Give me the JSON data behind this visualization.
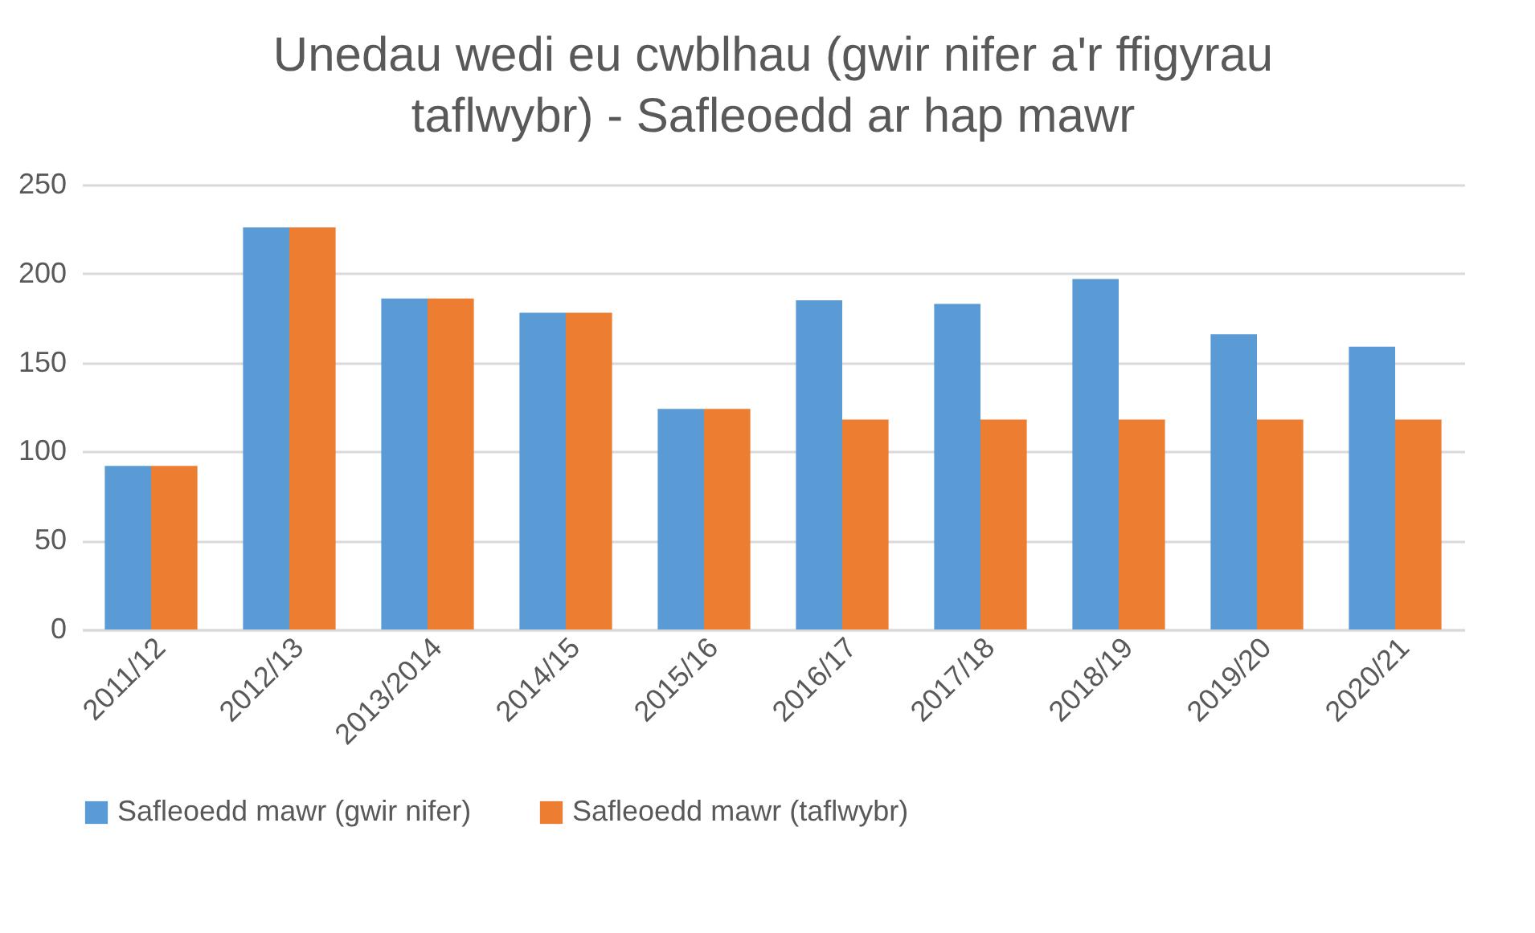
{
  "chart_data": {
    "type": "bar",
    "title": "Unedau wedi eu cwblhau (gwir nifer a'r ffigyrau taflwybr) - Safleoedd ar hap mawr",
    "categories": [
      "2011/12",
      "2012/13",
      "2013/2014",
      "2014/15",
      "2015/16",
      "2016/17",
      "2017/18",
      "2018/19",
      "2019/20",
      "2020/21"
    ],
    "series": [
      {
        "name": "Safleoedd mawr (gwir nifer)",
        "color": "#5b9bd5",
        "values": [
          92,
          226,
          186,
          178,
          124,
          185,
          183,
          197,
          166,
          159
        ]
      },
      {
        "name": "Safleoedd mawr (taflwybr)",
        "color": "#ed7d31",
        "values": [
          92,
          226,
          186,
          178,
          124,
          118,
          118,
          118,
          118,
          118
        ]
      }
    ],
    "ylim": [
      0,
      250
    ],
    "yticks": [
      0,
      50,
      100,
      150,
      200,
      250
    ],
    "grid": "y",
    "legend": "bottom"
  }
}
